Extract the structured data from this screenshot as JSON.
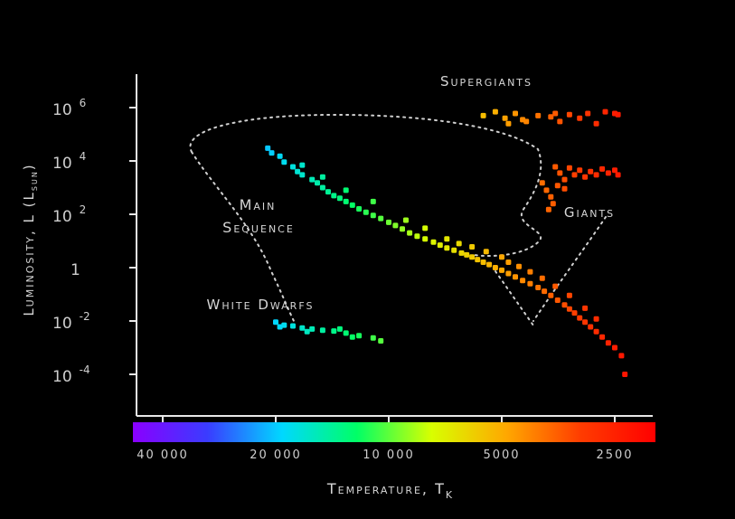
{
  "chart_data": {
    "type": "scatter",
    "title": "",
    "xlabel": "Temperature, T",
    "xlabel_sub": "K",
    "ylabel": "Luminosity, L (L",
    "ylabel_sub": "sun",
    "ylabel_end": ")",
    "x_scale": "log-reversed",
    "xlim": [
      50000,
      2000
    ],
    "y_scale": "log",
    "ylim": [
      1e-05,
      10000000.0
    ],
    "x_ticks": [
      {
        "value": 40000,
        "label": "40 000"
      },
      {
        "value": 20000,
        "label": "20 000"
      },
      {
        "value": 10000,
        "label": "10 000"
      },
      {
        "value": 5000,
        "label": "5000"
      },
      {
        "value": 2500,
        "label": "2500"
      }
    ],
    "y_ticks": [
      {
        "value": 1000000.0,
        "base": "10",
        "exp": "6"
      },
      {
        "value": 10000.0,
        "base": "10",
        "exp": "4"
      },
      {
        "value": 100.0,
        "base": "10",
        "exp": "2"
      },
      {
        "value": 1,
        "base": "1",
        "exp": ""
      },
      {
        "value": 0.01,
        "base": "10",
        "exp": "-2"
      },
      {
        "value": 0.0001,
        "base": "10",
        "exp": "-4"
      }
    ],
    "region_labels": {
      "supergiants": "Supergiants",
      "giants": "Giants",
      "main_sequence_1": "Main",
      "main_sequence_2": "Sequence",
      "white_dwarfs": "White Dwarfs"
    },
    "colorbar": {
      "temperature_range": [
        50000,
        2000
      ],
      "stops": [
        "#8a00ff",
        "#3a3cff",
        "#00d8ff",
        "#00ff66",
        "#d8ff00",
        "#ffa800",
        "#ff3c00",
        "#ff0000"
      ]
    },
    "series": [
      {
        "name": "Main Sequence",
        "points": [
          [
            21000,
            30000
          ],
          [
            20500,
            20000
          ],
          [
            19500,
            15000
          ],
          [
            19000,
            9000
          ],
          [
            18000,
            6000
          ],
          [
            17500,
            4000
          ],
          [
            17000,
            3000
          ],
          [
            16000,
            2000
          ],
          [
            15500,
            1500
          ],
          [
            15000,
            1000
          ],
          [
            14500,
            700
          ],
          [
            14000,
            500
          ],
          [
            13500,
            400
          ],
          [
            13000,
            300
          ],
          [
            12500,
            220
          ],
          [
            12000,
            160
          ],
          [
            11500,
            120
          ],
          [
            11000,
            90
          ],
          [
            10500,
            70
          ],
          [
            10000,
            50
          ],
          [
            9600,
            38
          ],
          [
            9200,
            28
          ],
          [
            8800,
            20
          ],
          [
            8400,
            15
          ],
          [
            8000,
            12
          ],
          [
            7600,
            9
          ],
          [
            7300,
            7
          ],
          [
            7000,
            5.5
          ],
          [
            6700,
            4.5
          ],
          [
            6400,
            3.5
          ],
          [
            6200,
            3
          ],
          [
            6000,
            2.5
          ],
          [
            5800,
            2
          ],
          [
            5600,
            1.6
          ],
          [
            5400,
            1.3
          ],
          [
            5200,
            1.0
          ],
          [
            5000,
            0.8
          ],
          [
            4800,
            0.6
          ],
          [
            4600,
            0.45
          ],
          [
            4400,
            0.33
          ],
          [
            4200,
            0.25
          ],
          [
            4000,
            0.18
          ],
          [
            3850,
            0.13
          ],
          [
            3700,
            0.09
          ],
          [
            3550,
            0.06
          ],
          [
            3400,
            0.04
          ],
          [
            3300,
            0.028
          ],
          [
            3200,
            0.02
          ],
          [
            3100,
            0.013
          ],
          [
            3000,
            0.009
          ],
          [
            2900,
            0.006
          ],
          [
            2800,
            0.004
          ],
          [
            2700,
            0.0025
          ],
          [
            2600,
            0.0015
          ],
          [
            2500,
            0.001
          ],
          [
            2400,
            0.0005
          ],
          [
            2350,
            0.0001
          ],
          [
            17000,
            7000
          ],
          [
            15000,
            2500
          ],
          [
            13000,
            800
          ],
          [
            11000,
            300
          ],
          [
            9000,
            60
          ],
          [
            8000,
            30
          ],
          [
            7000,
            12
          ],
          [
            6500,
            8
          ],
          [
            6000,
            6
          ],
          [
            5500,
            4
          ],
          [
            5000,
            2.5
          ],
          [
            4800,
            1.6
          ],
          [
            4500,
            1.1
          ],
          [
            4200,
            0.7
          ],
          [
            3900,
            0.4
          ],
          [
            3600,
            0.2
          ],
          [
            3300,
            0.09
          ],
          [
            3000,
            0.03
          ],
          [
            2800,
            0.012
          ]
        ]
      },
      {
        "name": "Supergiants",
        "points": [
          [
            5600,
            500000
          ],
          [
            5200,
            700000
          ],
          [
            4900,
            400000
          ],
          [
            4600,
            600000
          ],
          [
            4300,
            300000
          ],
          [
            4000,
            500000
          ],
          [
            3700,
            450000
          ],
          [
            3500,
            300000
          ],
          [
            3300,
            550000
          ],
          [
            3100,
            400000
          ],
          [
            2950,
            600000
          ],
          [
            2800,
            250000
          ],
          [
            2650,
            700000
          ],
          [
            2500,
            600000
          ],
          [
            2450,
            550000
          ],
          [
            4800,
            250000
          ],
          [
            4400,
            350000
          ],
          [
            3600,
            600000
          ]
        ]
      },
      {
        "name": "Giants",
        "points": [
          [
            3600,
            6000
          ],
          [
            3500,
            3500
          ],
          [
            3400,
            2000
          ],
          [
            3300,
            5500
          ],
          [
            3200,
            3000
          ],
          [
            3100,
            4500
          ],
          [
            3000,
            2500
          ],
          [
            2900,
            4000
          ],
          [
            2800,
            3000
          ],
          [
            2700,
            5000
          ],
          [
            2600,
            3500
          ],
          [
            2500,
            4500
          ],
          [
            2450,
            3000
          ],
          [
            3800,
            800
          ],
          [
            3700,
            450
          ],
          [
            3650,
            250
          ],
          [
            3750,
            150
          ],
          [
            3550,
            1200
          ],
          [
            3900,
            1500
          ],
          [
            3400,
            900
          ]
        ]
      },
      {
        "name": "White Dwarfs",
        "points": [
          [
            20000,
            0.009
          ],
          [
            19000,
            0.007
          ],
          [
            18000,
            0.0065
          ],
          [
            17000,
            0.0055
          ],
          [
            16000,
            0.005
          ],
          [
            15000,
            0.0045
          ],
          [
            14000,
            0.0042
          ],
          [
            13000,
            0.0035
          ],
          [
            12000,
            0.0028
          ],
          [
            11000,
            0.0023
          ],
          [
            10500,
            0.0018
          ],
          [
            19500,
            0.006
          ],
          [
            16500,
            0.004
          ],
          [
            13500,
            0.005
          ],
          [
            12500,
            0.0025
          ]
        ]
      }
    ]
  }
}
